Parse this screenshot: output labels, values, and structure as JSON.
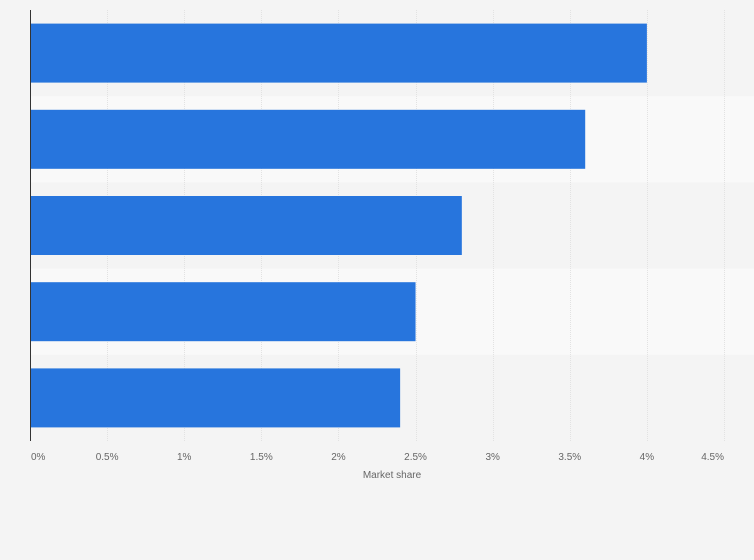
{
  "chart_data": {
    "type": "bar",
    "orientation": "horizontal",
    "categories": [
      "",
      "",
      "",
      "",
      ""
    ],
    "values": [
      4.0,
      3.6,
      2.8,
      2.5,
      2.4
    ],
    "x_ticks": [
      "0%",
      "0.5%",
      "1%",
      "1.5%",
      "2%",
      "2.5%",
      "3%",
      "3.5%",
      "4%",
      "4.5%"
    ],
    "xlim": [
      0,
      4.5
    ],
    "xlabel": "Market share",
    "ylabel": "",
    "title": "",
    "grid": true,
    "legend": "none"
  },
  "colors": {
    "bar": "#2775dd",
    "band_dark": "#f4f4f4",
    "band_light": "#f9f9f9",
    "grid": "#e2e2e2",
    "axis": "#333333",
    "text": "#666666"
  }
}
